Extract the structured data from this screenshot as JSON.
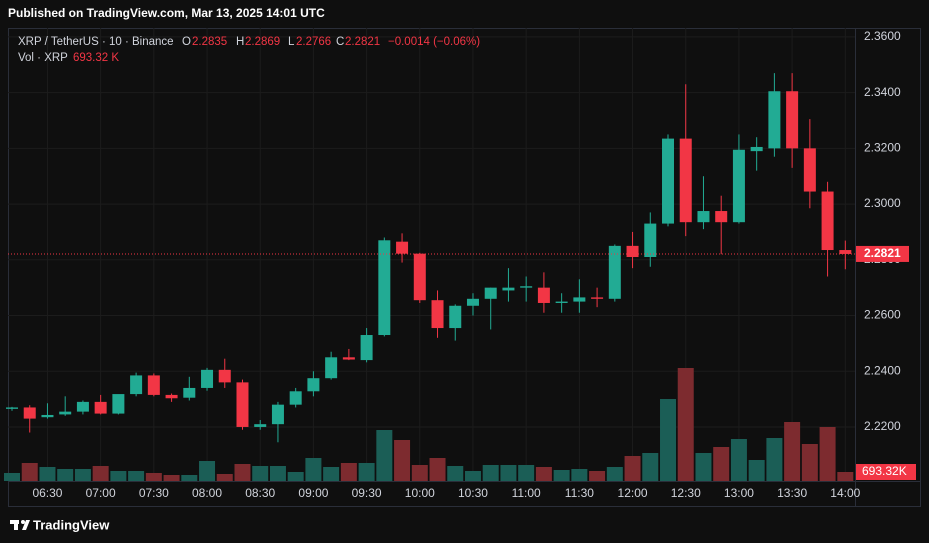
{
  "header": {
    "published": "Published on TradingView.com, Mar 13, 2025 14:01 UTC",
    "brand": "TradingView"
  },
  "chart_data": {
    "type": "candlestick",
    "symbol": "XRP / TetherUS · 10 · Binance",
    "legend_labels": {
      "open": "O",
      "high": "H",
      "low": "L",
      "close": "C"
    },
    "change": "−0.0014 (−0.06%)",
    "volume_title": "Vol · XRP",
    "volume_text": "693.32 K",
    "volume_tag": "693.32K",
    "categories": [
      null,
      null,
      "06:30",
      null,
      null,
      "07:00",
      null,
      null,
      "07:30",
      null,
      null,
      "08:00",
      null,
      null,
      "08:30",
      null,
      null,
      "09:00",
      null,
      null,
      "09:30",
      null,
      null,
      "10:00",
      null,
      null,
      "10:30",
      null,
      null,
      "11:00",
      null,
      null,
      "11:30",
      null,
      null,
      "12:00",
      null,
      null,
      "12:30",
      null,
      null,
      "13:00",
      null,
      null,
      "13:30",
      null,
      null,
      "14:00"
    ],
    "open": [
      2.2265,
      2.227,
      2.2235,
      2.2245,
      2.2255,
      2.229,
      2.2248,
      2.2318,
      2.2385,
      2.2315,
      2.2305,
      2.234,
      2.2405,
      2.236,
      2.22,
      2.221,
      2.228,
      2.2328,
      2.2375,
      2.245,
      2.244,
      2.253,
      2.2865,
      2.2822,
      2.2655,
      2.2555,
      2.2635,
      2.266,
      2.269,
      2.27,
      2.27,
      2.2645,
      2.265,
      2.2665,
      2.266,
      2.285,
      2.281,
      2.293,
      2.3235,
      2.2935,
      2.2975,
      2.2935,
      2.319,
      2.32,
      2.3405,
      2.32,
      2.3045,
      2.2835
    ],
    "high": [
      2.2272,
      2.2278,
      2.2285,
      2.231,
      2.2295,
      2.2315,
      2.231,
      2.2395,
      2.2392,
      2.232,
      2.238,
      2.2412,
      2.2445,
      2.237,
      2.2225,
      2.229,
      2.234,
      2.24,
      2.247,
      2.248,
      2.2555,
      2.288,
      2.2895,
      2.2825,
      2.269,
      2.264,
      2.268,
      2.27,
      2.277,
      2.274,
      2.2755,
      2.268,
      2.273,
      2.27,
      2.2855,
      2.29,
      2.297,
      2.325,
      2.343,
      2.31,
      2.303,
      2.325,
      2.324,
      2.347,
      2.347,
      2.3305,
      2.308,
      2.2869
    ],
    "low": [
      2.2258,
      2.218,
      2.223,
      2.224,
      2.2245,
      2.2245,
      2.2245,
      2.231,
      2.231,
      2.229,
      2.2295,
      2.233,
      2.234,
      2.219,
      2.219,
      2.2145,
      2.227,
      2.231,
      2.237,
      2.244,
      2.2432,
      2.2525,
      2.279,
      2.2645,
      2.252,
      2.251,
      2.26,
      2.255,
      2.265,
      2.265,
      2.261,
      2.261,
      2.261,
      2.263,
      2.265,
      2.277,
      2.2775,
      2.292,
      2.2885,
      2.291,
      2.282,
      2.293,
      2.312,
      2.317,
      2.313,
      2.2985,
      2.274,
      2.2766
    ],
    "close": [
      2.227,
      2.223,
      2.2243,
      2.2255,
      2.229,
      2.2248,
      2.2318,
      2.2385,
      2.2315,
      2.2303,
      2.234,
      2.2405,
      2.236,
      2.22,
      2.221,
      2.228,
      2.2328,
      2.2375,
      2.245,
      2.2442,
      2.253,
      2.287,
      2.2822,
      2.2655,
      2.2555,
      2.2635,
      2.266,
      2.27,
      2.27,
      2.2705,
      2.2645,
      2.265,
      2.2665,
      2.266,
      2.285,
      2.281,
      2.293,
      2.3235,
      2.2935,
      2.2975,
      2.2935,
      2.3195,
      2.3205,
      2.3405,
      2.32,
      2.3045,
      2.2835,
      2.2821
    ],
    "volume": [
      616,
      1386,
      1078,
      924,
      924,
      1155,
      770,
      770,
      616,
      462,
      462,
      1540,
      539,
      1309,
      1155,
      1155,
      693,
      1771,
      1078,
      1386,
      1386,
      3927,
      3157,
      1232,
      1771,
      1155,
      770,
      1232,
      1232,
      1232,
      1078,
      847,
      924,
      770,
      1078,
      1925,
      2156,
      6314,
      8701,
      2156,
      2618,
      3234,
      1617,
      3311,
      4543,
      2849,
      4158,
      693.32
    ],
    "ylim": [
      2.2006,
      2.3632
    ],
    "yticks": [
      {
        "value": 2.22,
        "label": "2.2200"
      },
      {
        "value": 2.24,
        "label": "2.2400"
      },
      {
        "value": 2.26,
        "label": "2.2600"
      },
      {
        "value": 2.28,
        "label": "2.2800"
      },
      {
        "value": 2.3,
        "label": "2.3000"
      },
      {
        "value": 2.32,
        "label": "2.3200"
      },
      {
        "value": 2.34,
        "label": "2.3400"
      },
      {
        "value": 2.36,
        "label": "2.3600"
      }
    ],
    "grid": true,
    "up_color": "#22ab94",
    "down_color": "#f23645",
    "volume_up_color": "#1b5e56",
    "volume_down_color": "#7d2b2f"
  }
}
